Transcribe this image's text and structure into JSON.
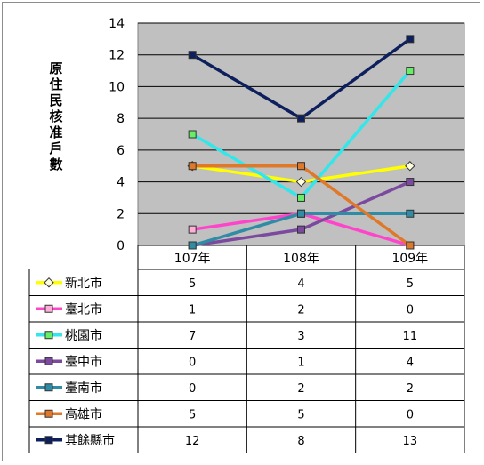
{
  "chart_data": {
    "type": "line",
    "title": "",
    "ylabel": "原住民核准戶數",
    "xlabel": "",
    "categories": [
      "107年",
      "108年",
      "109年"
    ],
    "ylim": [
      0,
      14
    ],
    "yticks": [
      0,
      2,
      4,
      6,
      8,
      10,
      12,
      14
    ],
    "grid": true,
    "legend": "data-table below plot",
    "series": [
      {
        "name": "新北市",
        "values": [
          5,
          4,
          5
        ],
        "color": "#ffff00",
        "marker": "diamond",
        "marker_fill": "#fffde0"
      },
      {
        "name": "臺北市",
        "values": [
          1,
          2,
          0
        ],
        "color": "#ff44cc",
        "marker": "square",
        "marker_fill": "#ffb0d8"
      },
      {
        "name": "桃園市",
        "values": [
          7,
          3,
          11
        ],
        "color": "#33e6ea",
        "marker": "square",
        "marker_fill": "#66ee66"
      },
      {
        "name": "臺中市",
        "values": [
          0,
          1,
          4
        ],
        "color": "#7b4a9e",
        "marker": "square",
        "marker_fill": "#7b4a9e"
      },
      {
        "name": "臺南市",
        "values": [
          0,
          2,
          2
        ],
        "color": "#2f8ca4",
        "marker": "square",
        "marker_fill": "#2f8ca4"
      },
      {
        "name": "高雄市",
        "values": [
          5,
          5,
          0
        ],
        "color": "#e0782a",
        "marker": "square",
        "marker_fill": "#e0782a"
      },
      {
        "name": "其餘縣市",
        "values": [
          12,
          8,
          13
        ],
        "color": "#0d1f5c",
        "marker": "square",
        "marker_fill": "#0d1f5c"
      }
    ]
  }
}
